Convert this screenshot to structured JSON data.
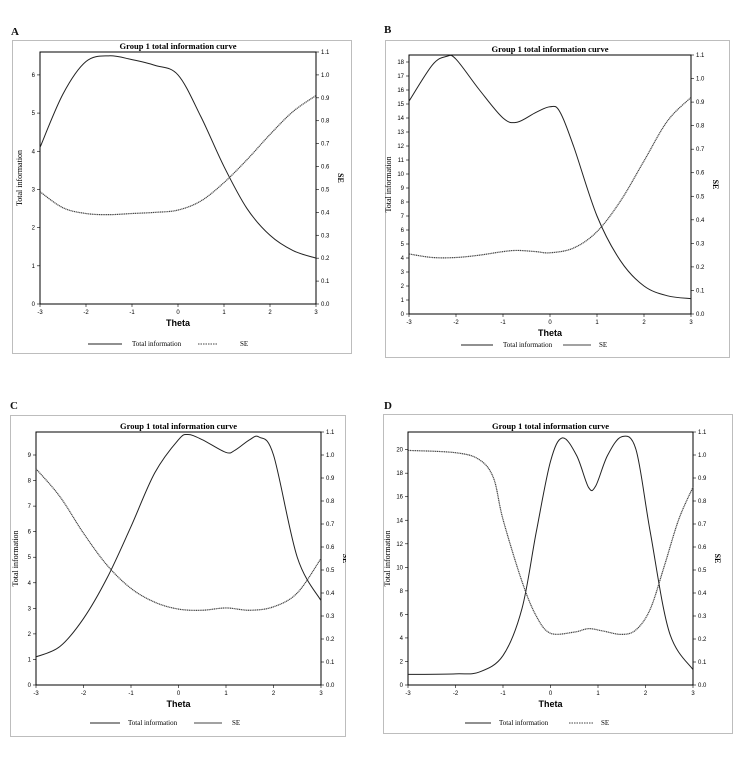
{
  "panels": [
    {
      "letter": "A"
    },
    {
      "letter": "B"
    },
    {
      "letter": "C"
    },
    {
      "letter": "D"
    }
  ],
  "chart_data": [
    {
      "type": "line",
      "title": "Group 1 total information curve",
      "xlabel": "Theta",
      "ylabel": "Total information",
      "y2label": "SE",
      "xlim": [
        -3,
        3
      ],
      "ylim": [
        0,
        6.6
      ],
      "y2lim": [
        0,
        1.1
      ],
      "xticks": [
        -3,
        -2,
        -1,
        0,
        1,
        2,
        3
      ],
      "yticks": [
        0,
        1,
        2,
        3,
        4,
        5,
        6
      ],
      "y2ticks": [
        0,
        0.1,
        0.2,
        0.3,
        0.4,
        0.5,
        0.6,
        0.7,
        0.8,
        0.9,
        1.0,
        1.1
      ],
      "legend": [
        "Total information",
        "SE"
      ],
      "legend_position": "bottom",
      "series": [
        {
          "name": "Total information",
          "axis": "left",
          "x": [
            -3,
            -2.5,
            -2,
            -1.5,
            -1,
            -0.5,
            0,
            0.5,
            1,
            1.5,
            2,
            2.5,
            3
          ],
          "y": [
            4.1,
            5.5,
            6.35,
            6.5,
            6.4,
            6.25,
            6.0,
            4.9,
            3.6,
            2.5,
            1.8,
            1.4,
            1.2
          ]
        },
        {
          "name": "SE",
          "axis": "right",
          "x": [
            -3,
            -2.5,
            -2,
            -1.5,
            -1,
            -0.5,
            0,
            0.5,
            1,
            1.5,
            2,
            2.5,
            3
          ],
          "y": [
            0.49,
            0.42,
            0.395,
            0.39,
            0.395,
            0.4,
            0.41,
            0.45,
            0.53,
            0.63,
            0.74,
            0.84,
            0.91
          ]
        }
      ]
    },
    {
      "type": "line",
      "title": "Group 1 total information curve",
      "xlabel": "Theta",
      "ylabel": "Total information",
      "y2label": "SE",
      "xlim": [
        -3,
        3
      ],
      "ylim": [
        0,
        18.5
      ],
      "y2lim": [
        0,
        1.1
      ],
      "xticks": [
        -3,
        -2,
        -1,
        0,
        1,
        2,
        3
      ],
      "yticks": [
        0,
        1,
        2,
        3,
        4,
        5,
        6,
        7,
        8,
        9,
        10,
        11,
        12,
        13,
        14,
        15,
        16,
        17,
        18
      ],
      "y2ticks": [
        0,
        0.1,
        0.2,
        0.3,
        0.4,
        0.5,
        0.6,
        0.7,
        0.8,
        0.9,
        1.0,
        1.1
      ],
      "legend": [
        "Total information",
        "SE"
      ],
      "legend_position": "bottom",
      "series": [
        {
          "name": "Total information",
          "axis": "left",
          "x": [
            -3,
            -2.5,
            -2.2,
            -2,
            -1.5,
            -1,
            -0.7,
            -0.3,
            0,
            0.2,
            0.5,
            1,
            1.5,
            2,
            2.5,
            3
          ],
          "y": [
            15.2,
            17.8,
            18.4,
            18.2,
            16.0,
            14.0,
            13.7,
            14.4,
            14.8,
            14.5,
            12.0,
            7.0,
            3.8,
            2.0,
            1.3,
            1.1
          ]
        },
        {
          "name": "SE",
          "axis": "right",
          "x": [
            -3,
            -2.5,
            -2,
            -1.5,
            -1,
            -0.7,
            -0.3,
            0,
            0.5,
            1,
            1.5,
            2,
            2.5,
            3
          ],
          "y": [
            0.255,
            0.24,
            0.24,
            0.25,
            0.265,
            0.27,
            0.265,
            0.26,
            0.28,
            0.35,
            0.48,
            0.65,
            0.82,
            0.92
          ]
        }
      ]
    },
    {
      "type": "line",
      "title": "Group 1 total information curve",
      "xlabel": "Theta",
      "ylabel": "Total information",
      "y2label": "SE",
      "xlim": [
        -3,
        3
      ],
      "ylim": [
        0,
        9.9
      ],
      "y2lim": [
        0,
        1.1
      ],
      "xticks": [
        -3,
        -2,
        -1,
        0,
        1,
        2,
        3
      ],
      "yticks": [
        0,
        1,
        2,
        3,
        4,
        5,
        6,
        7,
        8,
        9
      ],
      "y2ticks": [
        0,
        0.1,
        0.2,
        0.3,
        0.4,
        0.5,
        0.6,
        0.7,
        0.8,
        0.9,
        1.0,
        1.1
      ],
      "legend": [
        "Total information",
        "SE"
      ],
      "legend_position": "bottom",
      "series": [
        {
          "name": "Total information",
          "axis": "left",
          "x": [
            -3,
            -2.5,
            -2,
            -1.5,
            -1,
            -0.5,
            0,
            0.2,
            0.5,
            1,
            1.2,
            1.5,
            1.7,
            2,
            2.5,
            3
          ],
          "y": [
            1.1,
            1.5,
            2.6,
            4.2,
            6.2,
            8.3,
            9.6,
            9.8,
            9.6,
            9.1,
            9.2,
            9.6,
            9.7,
            9.0,
            5.0,
            3.3
          ]
        },
        {
          "name": "SE",
          "axis": "right",
          "x": [
            -3,
            -2.5,
            -2,
            -1.5,
            -1,
            -0.5,
            0,
            0.5,
            1,
            1.5,
            2,
            2.5,
            3
          ],
          "y": [
            0.94,
            0.82,
            0.66,
            0.52,
            0.42,
            0.36,
            0.33,
            0.325,
            0.335,
            0.325,
            0.34,
            0.4,
            0.55
          ]
        }
      ]
    },
    {
      "type": "line",
      "title": "Group 1 total information curve",
      "xlabel": "Theta",
      "ylabel": "Total information",
      "y2label": "SE",
      "xlim": [
        -3,
        3
      ],
      "ylim": [
        0,
        21.5
      ],
      "y2lim": [
        0,
        1.1
      ],
      "xticks": [
        -3,
        -2,
        -1,
        0,
        1,
        2,
        3
      ],
      "yticks": [
        0,
        2,
        4,
        6,
        8,
        10,
        12,
        14,
        16,
        18,
        20
      ],
      "y2ticks": [
        0,
        0.1,
        0.2,
        0.3,
        0.4,
        0.5,
        0.6,
        0.7,
        0.8,
        0.9,
        1.0,
        1.1
      ],
      "legend": [
        "Total information",
        "SE"
      ],
      "legend_position": "bottom",
      "series": [
        {
          "name": "Total information",
          "axis": "left",
          "x": [
            -3,
            -2,
            -1.5,
            -1,
            -0.6,
            -0.3,
            0,
            0.25,
            0.55,
            0.8,
            0.95,
            1.2,
            1.5,
            1.8,
            2.1,
            2.5,
            3
          ],
          "y": [
            0.9,
            0.95,
            1.1,
            2.5,
            6.5,
            13.0,
            19.0,
            21.0,
            19.5,
            16.8,
            16.9,
            19.5,
            21.1,
            20.0,
            13.0,
            4.5,
            1.3
          ]
        },
        {
          "name": "SE",
          "axis": "right",
          "x": [
            -3,
            -2,
            -1.5,
            -1.2,
            -1,
            -0.6,
            -0.3,
            0,
            0.5,
            0.8,
            1.1,
            1.5,
            1.8,
            2.1,
            2.4,
            2.7,
            3
          ],
          "y": [
            1.02,
            1.01,
            0.98,
            0.9,
            0.72,
            0.45,
            0.3,
            0.225,
            0.23,
            0.245,
            0.235,
            0.22,
            0.24,
            0.33,
            0.52,
            0.72,
            0.86
          ]
        }
      ]
    }
  ]
}
